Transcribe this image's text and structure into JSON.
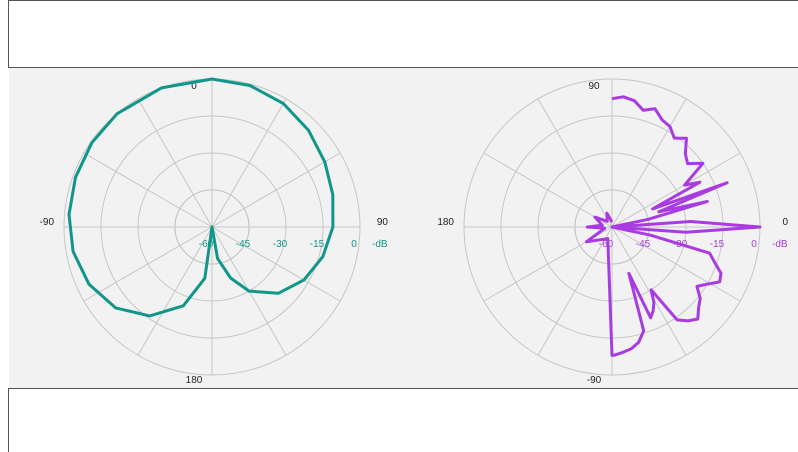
{
  "colors": {
    "pattern_1": "#11968a",
    "pattern_2": "#a93ce0",
    "grid": "#c6c6c6",
    "band": "#f2f2f2"
  },
  "chart_data": [
    {
      "type": "polar-line",
      "series_color": "#11968a",
      "angle_labels": {
        "top": "0",
        "left": "-90",
        "right": "90",
        "bottom": "180"
      },
      "radial_ticks": [
        "-60",
        "-45",
        "-30",
        "-15",
        "0"
      ],
      "radial_unit": "-dB",
      "r_range": [
        -60,
        0
      ],
      "grid": true,
      "points": [
        [
          0,
          0
        ],
        [
          15,
          -0.6
        ],
        [
          30,
          -2.2
        ],
        [
          45,
          -4.6
        ],
        [
          60,
          -7.2
        ],
        [
          75,
          -9.3
        ],
        [
          90,
          -11
        ],
        [
          105,
          -13.5
        ],
        [
          120,
          -17
        ],
        [
          135,
          -22
        ],
        [
          150,
          -30
        ],
        [
          160,
          -38
        ],
        [
          170,
          -47
        ],
        [
          180,
          -60
        ],
        [
          188,
          -39
        ],
        [
          200,
          -26
        ],
        [
          215,
          -16
        ],
        [
          230,
          -9
        ],
        [
          245,
          -5
        ],
        [
          260,
          -2.8
        ],
        [
          275,
          -1.8
        ],
        [
          290,
          -1.1
        ],
        [
          305,
          -0.5
        ],
        [
          320,
          -0.1
        ],
        [
          340,
          0
        ],
        [
          360,
          0
        ]
      ]
    },
    {
      "type": "polar-line",
      "series_color": "#a93ce0",
      "angle_labels": {
        "top": "90",
        "left": "180",
        "right": "0",
        "bottom": "-90"
      },
      "radial_ticks": [
        "-60",
        "-45",
        "-30",
        "-15",
        "0"
      ],
      "radial_unit": "-dB",
      "r_range": [
        -60,
        0
      ],
      "grid": true,
      "points": [
        [
          -90,
          -8
        ],
        [
          -85,
          -7
        ],
        [
          -80,
          -8
        ],
        [
          -75,
          -11
        ],
        [
          -70,
          -9
        ],
        [
          -65,
          -12
        ],
        [
          -60,
          -13
        ],
        [
          -55,
          -16
        ],
        [
          -50,
          -13
        ],
        [
          -45,
          -18
        ],
        [
          -40,
          -20
        ],
        [
          -35,
          -15
        ],
        [
          -30,
          -26
        ],
        [
          -27,
          -20
        ],
        [
          -24,
          -42
        ],
        [
          -21,
          -10
        ],
        [
          -18,
          -40
        ],
        [
          -15,
          -20
        ],
        [
          -12,
          -45
        ],
        [
          -8,
          -60
        ],
        [
          -4,
          -28
        ],
        [
          0,
          0
        ],
        [
          4,
          -30
        ],
        [
          8,
          -60
        ],
        [
          12,
          -44
        ],
        [
          15,
          -19
        ],
        [
          19,
          -16
        ],
        [
          23,
          -12
        ],
        [
          27,
          -11
        ],
        [
          31,
          -15
        ],
        [
          35,
          -18
        ],
        [
          39,
          -14
        ],
        [
          43,
          -12
        ],
        [
          47,
          -9
        ],
        [
          51,
          -11
        ],
        [
          55,
          -14
        ],
        [
          58,
          -30
        ],
        [
          61,
          -25
        ],
        [
          64,
          -22
        ],
        [
          67,
          -20
        ],
        [
          70,
          -40
        ],
        [
          73,
          -16
        ],
        [
          77,
          -12
        ],
        [
          81,
          -10
        ],
        [
          85,
          -9
        ],
        [
          89,
          -8
        ],
        [
          90,
          -8
        ],
        [
          110,
          -55
        ],
        [
          150,
          -48
        ],
        [
          170,
          -57
        ],
        [
          180,
          -50
        ],
        [
          190,
          -56
        ],
        [
          210,
          -52
        ],
        [
          230,
          -57
        ],
        [
          250,
          -54
        ],
        [
          270,
          -58
        ]
      ]
    }
  ]
}
